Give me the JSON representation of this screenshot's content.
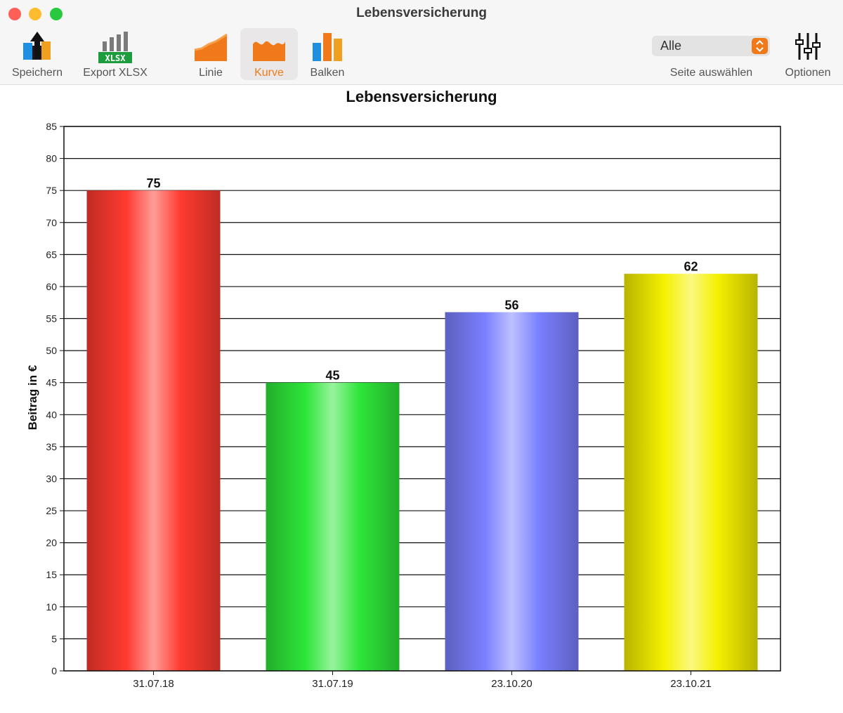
{
  "window": {
    "title": "Lebensversicherung"
  },
  "toolbar": {
    "save_label": "Speichern",
    "export_label": "Export XLSX",
    "export_badge": "XLSX",
    "line_label": "Linie",
    "curve_label": "Kurve",
    "bars_label": "Balken",
    "page_select_value": "Alle",
    "page_select_label": "Seite auswählen",
    "options_label": "Optionen",
    "accent_color": "#f07a1a"
  },
  "chart_data": {
    "type": "bar",
    "title": "Lebensversicherung",
    "xlabel": "",
    "ylabel": "Beitrag in €",
    "categories": [
      "31.07.18",
      "31.07.19",
      "23.10.20",
      "23.10.21"
    ],
    "values": [
      75,
      45,
      56,
      62
    ],
    "colors": [
      "#ff3b30",
      "#2ee63a",
      "#7a80ff",
      "#f5f000"
    ],
    "ylim": [
      0,
      85
    ],
    "yticks": [
      0,
      5,
      10,
      15,
      20,
      25,
      30,
      35,
      40,
      45,
      50,
      55,
      60,
      65,
      70,
      75,
      80,
      85
    ],
    "grid": true,
    "data_labels": true
  }
}
